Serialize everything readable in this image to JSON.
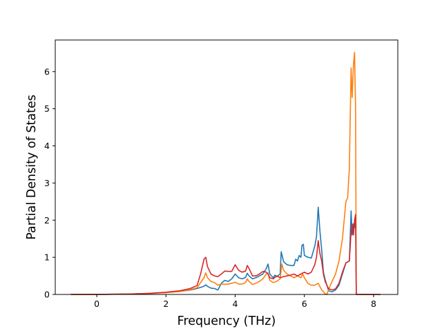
{
  "chart_data": {
    "type": "line",
    "title": "",
    "xlabel": "Frequency (THz)",
    "ylabel": "Partial Density of States",
    "xlim": [
      -1.2,
      8.7
    ],
    "ylim": [
      0,
      6.85
    ],
    "xticks": [
      0,
      2,
      4,
      6,
      8
    ],
    "yticks": [
      0,
      1,
      2,
      3,
      4,
      5,
      6
    ],
    "grid": false,
    "legend": "none",
    "series": [
      {
        "color": "#1f77b4",
        "points": [
          [
            -0.75,
            0
          ],
          [
            0,
            0.002
          ],
          [
            0.5,
            0.005
          ],
          [
            1,
            0.01
          ],
          [
            1.5,
            0.025
          ],
          [
            2,
            0.05
          ],
          [
            2.4,
            0.08
          ],
          [
            2.7,
            0.12
          ],
          [
            2.9,
            0.16
          ],
          [
            3.0,
            0.19
          ],
          [
            3.1,
            0.22
          ],
          [
            3.15,
            0.26
          ],
          [
            3.2,
            0.22
          ],
          [
            3.3,
            0.17
          ],
          [
            3.4,
            0.16
          ],
          [
            3.5,
            0.12
          ],
          [
            3.6,
            0.3
          ],
          [
            3.7,
            0.38
          ],
          [
            3.8,
            0.35
          ],
          [
            3.9,
            0.42
          ],
          [
            4.0,
            0.55
          ],
          [
            4.1,
            0.45
          ],
          [
            4.2,
            0.42
          ],
          [
            4.3,
            0.46
          ],
          [
            4.35,
            0.57
          ],
          [
            4.4,
            0.5
          ],
          [
            4.5,
            0.42
          ],
          [
            4.6,
            0.45
          ],
          [
            4.7,
            0.5
          ],
          [
            4.8,
            0.55
          ],
          [
            4.9,
            0.7
          ],
          [
            4.95,
            0.82
          ],
          [
            5.0,
            0.55
          ],
          [
            5.1,
            0.45
          ],
          [
            5.15,
            0.52
          ],
          [
            5.2,
            0.48
          ],
          [
            5.3,
            0.55
          ],
          [
            5.33,
            1.15
          ],
          [
            5.4,
            0.88
          ],
          [
            5.5,
            0.8
          ],
          [
            5.6,
            0.78
          ],
          [
            5.7,
            0.78
          ],
          [
            5.75,
            0.95
          ],
          [
            5.8,
            0.9
          ],
          [
            5.85,
            1.05
          ],
          [
            5.9,
            1.0
          ],
          [
            5.93,
            1.32
          ],
          [
            5.97,
            1.35
          ],
          [
            6.0,
            1.05
          ],
          [
            6.1,
            1.0
          ],
          [
            6.2,
            0.98
          ],
          [
            6.3,
            1.3
          ],
          [
            6.35,
            1.55
          ],
          [
            6.4,
            2.35
          ],
          [
            6.45,
            1.7
          ],
          [
            6.5,
            1.2
          ],
          [
            6.55,
            0.6
          ],
          [
            6.6,
            0.4
          ],
          [
            6.7,
            0.1
          ],
          [
            6.8,
            0.07
          ],
          [
            6.9,
            0.12
          ],
          [
            7.0,
            0.25
          ],
          [
            7.1,
            0.55
          ],
          [
            7.2,
            0.85
          ],
          [
            7.3,
            0.9
          ],
          [
            7.35,
            2.25
          ],
          [
            7.38,
            1.6
          ],
          [
            7.42,
            1.9
          ],
          [
            7.45,
            1.8
          ],
          [
            7.48,
            2.1
          ],
          [
            7.5,
            0
          ],
          [
            8.2,
            0
          ]
        ]
      },
      {
        "color": "#ff7f0e",
        "points": [
          [
            -0.75,
            0
          ],
          [
            0,
            0.002
          ],
          [
            0.5,
            0.005
          ],
          [
            1,
            0.01
          ],
          [
            1.5,
            0.025
          ],
          [
            2,
            0.05
          ],
          [
            2.4,
            0.08
          ],
          [
            2.7,
            0.13
          ],
          [
            2.9,
            0.18
          ],
          [
            3.0,
            0.32
          ],
          [
            3.1,
            0.45
          ],
          [
            3.15,
            0.58
          ],
          [
            3.2,
            0.45
          ],
          [
            3.3,
            0.35
          ],
          [
            3.4,
            0.32
          ],
          [
            3.5,
            0.25
          ],
          [
            3.6,
            0.28
          ],
          [
            3.7,
            0.27
          ],
          [
            3.8,
            0.28
          ],
          [
            3.9,
            0.3
          ],
          [
            4.0,
            0.33
          ],
          [
            4.1,
            0.28
          ],
          [
            4.2,
            0.28
          ],
          [
            4.3,
            0.32
          ],
          [
            4.35,
            0.42
          ],
          [
            4.4,
            0.35
          ],
          [
            4.5,
            0.27
          ],
          [
            4.6,
            0.3
          ],
          [
            4.7,
            0.35
          ],
          [
            4.8,
            0.42
          ],
          [
            4.9,
            0.55
          ],
          [
            4.95,
            0.58
          ],
          [
            5.0,
            0.38
          ],
          [
            5.1,
            0.32
          ],
          [
            5.2,
            0.35
          ],
          [
            5.3,
            0.42
          ],
          [
            5.35,
            0.82
          ],
          [
            5.4,
            0.65
          ],
          [
            5.5,
            0.55
          ],
          [
            5.6,
            0.5
          ],
          [
            5.7,
            0.45
          ],
          [
            5.8,
            0.5
          ],
          [
            5.9,
            0.45
          ],
          [
            5.95,
            0.55
          ],
          [
            6.0,
            0.45
          ],
          [
            6.1,
            0.3
          ],
          [
            6.2,
            0.25
          ],
          [
            6.3,
            0.25
          ],
          [
            6.4,
            0.3
          ],
          [
            6.5,
            0.12
          ],
          [
            6.6,
            0.02
          ],
          [
            6.65,
            0.0
          ],
          [
            6.75,
            0.25
          ],
          [
            6.9,
            0.55
          ],
          [
            7.0,
            0.9
          ],
          [
            7.1,
            1.5
          ],
          [
            7.2,
            2.5
          ],
          [
            7.25,
            2.6
          ],
          [
            7.3,
            3.4
          ],
          [
            7.35,
            6.1
          ],
          [
            7.38,
            5.3
          ],
          [
            7.42,
            6.2
          ],
          [
            7.45,
            6.52
          ],
          [
            7.48,
            5.0
          ],
          [
            7.5,
            0
          ],
          [
            8.2,
            0
          ]
        ]
      },
      {
        "color": "#d62728",
        "points": [
          [
            -0.75,
            0
          ],
          [
            0,
            0.002
          ],
          [
            0.5,
            0.005
          ],
          [
            1,
            0.012
          ],
          [
            1.5,
            0.03
          ],
          [
            2,
            0.06
          ],
          [
            2.4,
            0.1
          ],
          [
            2.7,
            0.16
          ],
          [
            2.9,
            0.24
          ],
          [
            3.0,
            0.55
          ],
          [
            3.1,
            0.95
          ],
          [
            3.15,
            1.0
          ],
          [
            3.2,
            0.75
          ],
          [
            3.3,
            0.55
          ],
          [
            3.4,
            0.5
          ],
          [
            3.5,
            0.48
          ],
          [
            3.6,
            0.55
          ],
          [
            3.7,
            0.63
          ],
          [
            3.8,
            0.62
          ],
          [
            3.9,
            0.62
          ],
          [
            4.0,
            0.8
          ],
          [
            4.1,
            0.65
          ],
          [
            4.2,
            0.6
          ],
          [
            4.3,
            0.63
          ],
          [
            4.35,
            0.78
          ],
          [
            4.4,
            0.7
          ],
          [
            4.5,
            0.5
          ],
          [
            4.6,
            0.5
          ],
          [
            4.7,
            0.55
          ],
          [
            4.8,
            0.62
          ],
          [
            4.9,
            0.6
          ],
          [
            4.95,
            0.55
          ],
          [
            5.0,
            0.45
          ],
          [
            5.1,
            0.42
          ],
          [
            5.2,
            0.5
          ],
          [
            5.3,
            0.45
          ],
          [
            5.4,
            0.48
          ],
          [
            5.5,
            0.5
          ],
          [
            5.6,
            0.52
          ],
          [
            5.7,
            0.55
          ],
          [
            5.8,
            0.5
          ],
          [
            5.9,
            0.55
          ],
          [
            6.0,
            0.6
          ],
          [
            6.1,
            0.55
          ],
          [
            6.2,
            0.6
          ],
          [
            6.3,
            0.8
          ],
          [
            6.35,
            1.0
          ],
          [
            6.4,
            1.45
          ],
          [
            6.45,
            1.1
          ],
          [
            6.5,
            0.9
          ],
          [
            6.55,
            0.55
          ],
          [
            6.6,
            0.35
          ],
          [
            6.7,
            0.15
          ],
          [
            6.8,
            0.12
          ],
          [
            6.9,
            0.15
          ],
          [
            7.0,
            0.3
          ],
          [
            7.1,
            0.6
          ],
          [
            7.2,
            0.85
          ],
          [
            7.3,
            0.9
          ],
          [
            7.35,
            1.7
          ],
          [
            7.38,
            1.9
          ],
          [
            7.42,
            1.6
          ],
          [
            7.45,
            2.0
          ],
          [
            7.48,
            2.15
          ],
          [
            7.5,
            0
          ],
          [
            8.2,
            0
          ]
        ]
      }
    ]
  }
}
